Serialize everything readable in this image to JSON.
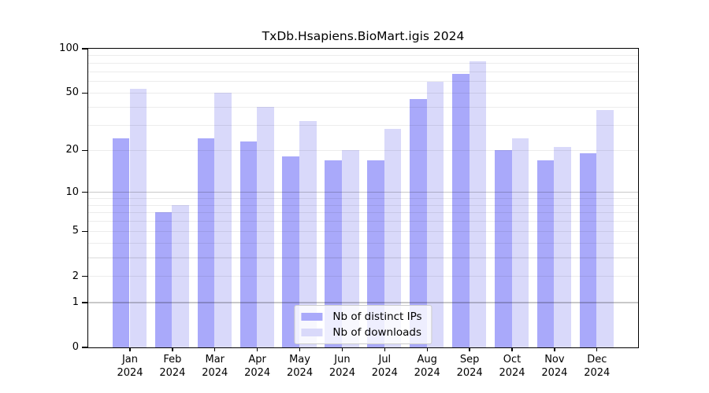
{
  "chart_data": {
    "type": "bar",
    "title": "TxDb.Hsapiens.BioMart.igis 2024",
    "year_label": "2024",
    "categories": [
      "Jan",
      "Feb",
      "Mar",
      "Apr",
      "May",
      "Jun",
      "Jul",
      "Aug",
      "Sep",
      "Oct",
      "Nov",
      "Dec"
    ],
    "series": [
      {
        "name": "Nb of distinct IPs",
        "color": "#a9a9fa",
        "values": [
          24,
          7,
          24,
          23,
          18,
          17,
          17,
          45,
          67,
          20,
          17,
          19
        ]
      },
      {
        "name": "Nb of downloads",
        "color": "#d9d9fa",
        "values": [
          53,
          8,
          50,
          40,
          32,
          20,
          28,
          59,
          82,
          24,
          21,
          38
        ]
      }
    ],
    "xlabel": "",
    "ylabel": "",
    "yscale": "log1p",
    "ylim": [
      0,
      100
    ],
    "yticks": [
      100,
      50,
      20,
      10,
      5,
      2,
      1,
      0
    ],
    "major_gridlines": [
      1,
      10
    ],
    "minor_gridlines": [
      2,
      3,
      4,
      5,
      6,
      7,
      8,
      9,
      20,
      30,
      40,
      50,
      60,
      70,
      80,
      90
    ],
    "grid": "on",
    "legend_position": "lower center",
    "colors": {
      "major_grid": "#c9c9c9",
      "minor_grid": "#ebebeb",
      "spine": "#000000",
      "background": "#ffffff"
    }
  }
}
